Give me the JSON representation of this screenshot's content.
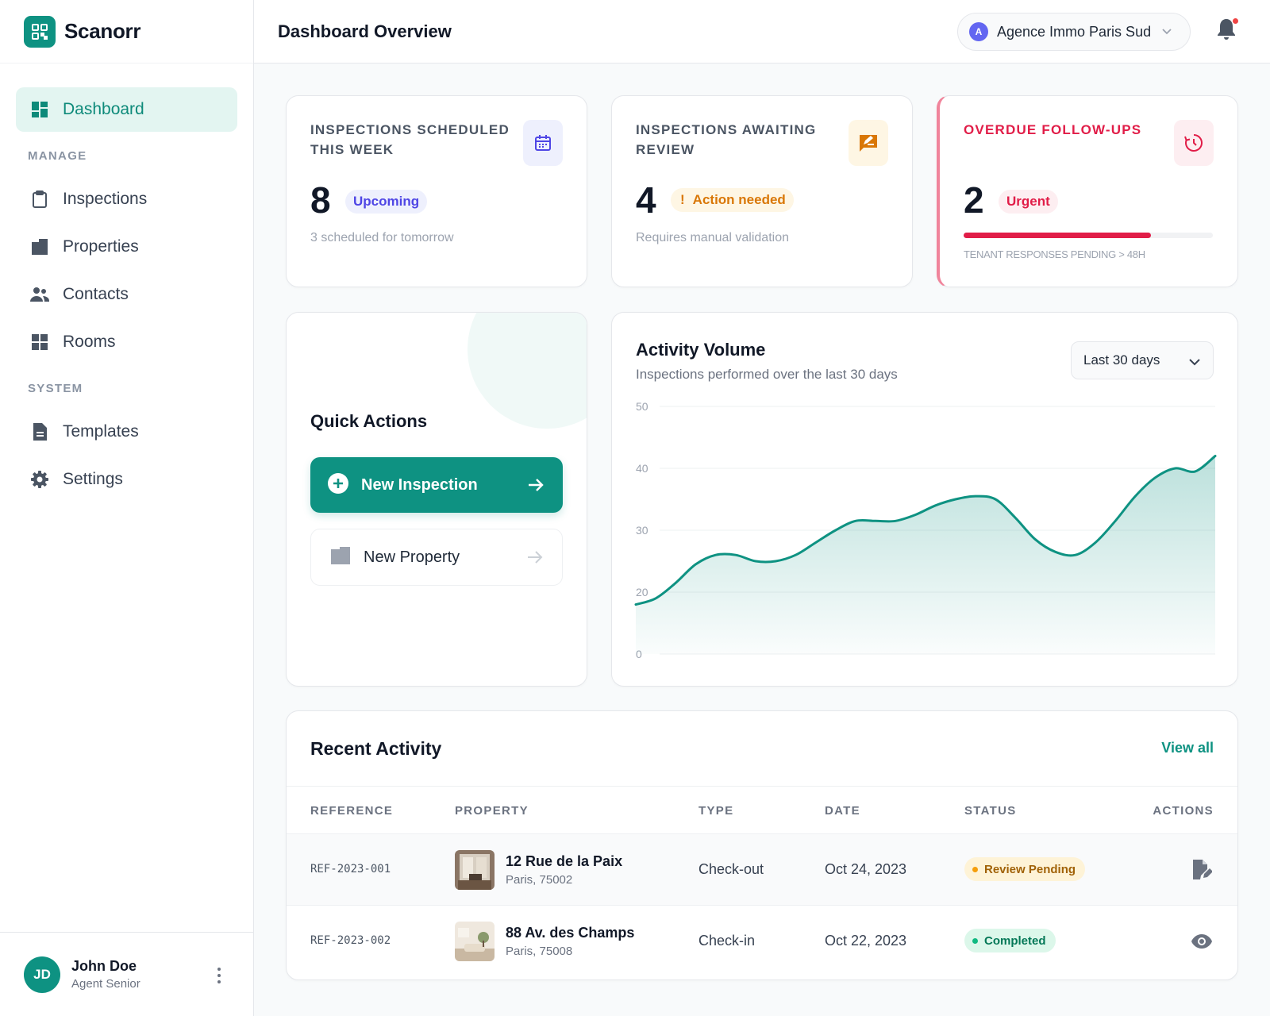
{
  "brand": {
    "name": "Scanorr"
  },
  "sidebar": {
    "items": [
      {
        "label": "Dashboard",
        "icon": "dashboard-icon"
      }
    ],
    "manage_label": "MANAGE",
    "manage_items": [
      {
        "label": "Inspections",
        "icon": "clipboard-icon"
      },
      {
        "label": "Properties",
        "icon": "building-icon"
      },
      {
        "label": "Contacts",
        "icon": "people-icon"
      },
      {
        "label": "Rooms",
        "icon": "grid-icon"
      }
    ],
    "system_label": "SYSTEM",
    "system_items": [
      {
        "label": "Templates",
        "icon": "document-icon"
      },
      {
        "label": "Settings",
        "icon": "gear-icon"
      }
    ],
    "user": {
      "initials": "JD",
      "name": "John Doe",
      "role": "Agent Senior"
    }
  },
  "header": {
    "title": "Dashboard Overview",
    "org": {
      "initial": "A",
      "name": "Agence Immo Paris Sud"
    }
  },
  "stats": [
    {
      "title": "INSPECTIONS SCHEDULED THIS WEEK",
      "value": "8",
      "pill": "Upcoming",
      "sub": "3 scheduled for tomorrow",
      "icon": "calendar-icon"
    },
    {
      "title": "INSPECTIONS AWAITING REVIEW",
      "value": "4",
      "pill": "Action needed",
      "sub": "Requires manual validation",
      "icon": "rate-review-icon"
    },
    {
      "title": "OVERDUE FOLLOW-UPS",
      "value": "2",
      "pill": "Urgent",
      "sub": "TENANT RESPONSES PENDING > 48H",
      "progress": 0.75,
      "icon": "clock-alert-icon"
    }
  ],
  "quick_actions": {
    "title": "Quick Actions",
    "primary": "New Inspection",
    "secondary": "New Property"
  },
  "activity": {
    "title": "Activity Volume",
    "subtitle": "Inspections performed over the last 30 days",
    "range": "Last 30 days"
  },
  "chart_data": {
    "type": "area",
    "title": "Activity Volume",
    "subtitle": "Inspections performed over the last 30 days",
    "xlabel": "",
    "ylabel": "",
    "y_ticks": [
      0,
      20,
      30,
      40,
      50
    ],
    "ylim": [
      0,
      50
    ],
    "grid": true,
    "x": [
      1,
      2,
      3,
      4,
      5,
      6,
      7,
      8,
      9,
      10,
      11,
      12,
      13,
      14,
      15,
      16,
      17,
      18,
      19,
      20,
      21,
      22,
      23,
      24,
      25,
      26,
      27,
      28,
      29,
      30
    ],
    "series": [
      {
        "values": [
          16,
          18,
          21.5,
          24.5,
          26,
          26,
          25,
          25,
          26,
          28,
          30,
          31.5,
          31.5,
          31.5,
          32.5,
          34,
          35,
          35.5,
          35,
          32,
          28.5,
          26.5,
          26,
          28,
          31.5,
          35.5,
          38.5,
          40,
          39.5,
          42
        ]
      }
    ],
    "color": "#0e9282"
  },
  "recent": {
    "title": "Recent Activity",
    "view_all": "View all",
    "columns": [
      "REFERENCE",
      "PROPERTY",
      "TYPE",
      "DATE",
      "STATUS",
      "ACTIONS"
    ],
    "rows": [
      {
        "reference": "REF-2023-001",
        "property": "12 Rue de la Paix",
        "city": "Paris, 75002",
        "type": "Check-out",
        "date": "Oct 24, 2023",
        "status": "Review Pending",
        "action_icon": "edit-document-icon"
      },
      {
        "reference": "REF-2023-002",
        "property": "88 Av. des Champs",
        "city": "Paris, 75008",
        "type": "Check-in",
        "date": "Oct 22, 2023",
        "status": "Completed",
        "action_icon": "eye-icon"
      }
    ]
  },
  "colors": {
    "accent": "#0e9282",
    "accent_light": "#e3f5f1",
    "warning": "#d97706",
    "danger": "#e11d48",
    "info": "#4f46e5"
  }
}
